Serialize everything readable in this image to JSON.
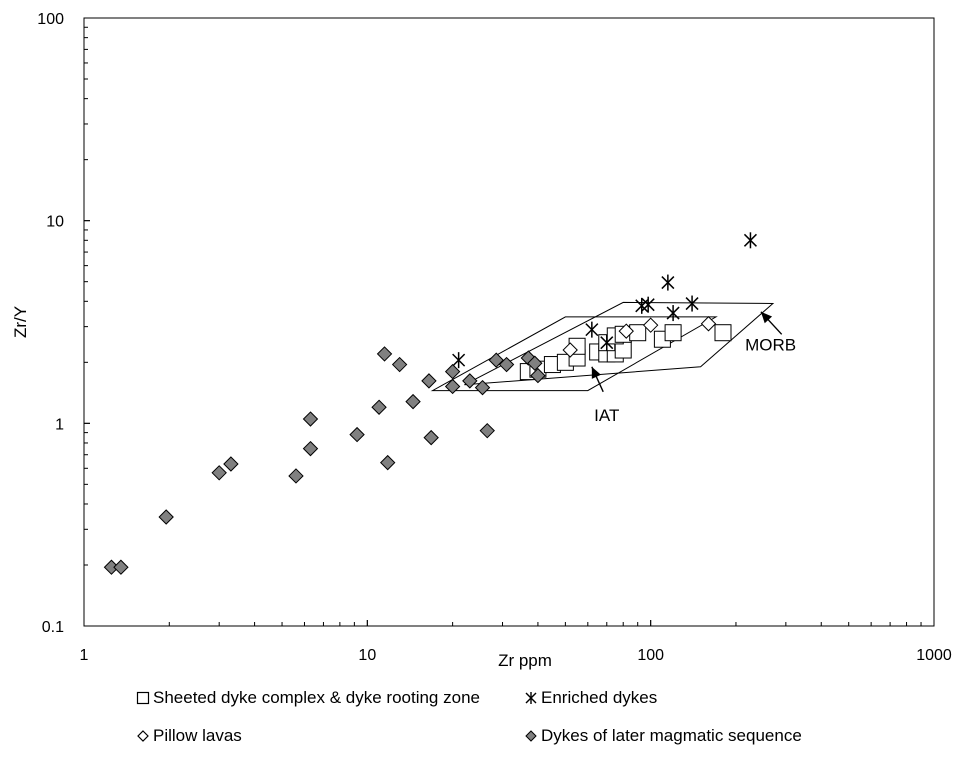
{
  "chart_data": {
    "type": "scatter",
    "title": "",
    "xlabel": "Zr ppm",
    "ylabel": "Zr/Y",
    "xscale": "log",
    "yscale": "log",
    "xlim": [
      1,
      1000
    ],
    "ylim": [
      0.1,
      100
    ],
    "x_ticks": [
      1,
      10,
      100,
      1000
    ],
    "x_tick_labels": [
      "1",
      "10",
      "100",
      "1000"
    ],
    "y_ticks": [
      0.1,
      1,
      10,
      100
    ],
    "y_tick_labels": [
      "0.1",
      "1",
      "10",
      "100"
    ],
    "grid": false,
    "legend_position": "bottom",
    "fields": [
      {
        "name": "IAT",
        "label_at": [
          70,
          1.1
        ],
        "arrow_from": [
          68,
          1.43
        ],
        "arrow_to": [
          62,
          1.9
        ],
        "polygon": [
          [
            17,
            1.45
          ],
          [
            60,
            1.45
          ],
          [
            170,
            3.35
          ],
          [
            50,
            3.35
          ]
        ]
      },
      {
        "name": "MORB",
        "label_at": [
          265,
          2.45
        ],
        "arrow_from": [
          290,
          2.75
        ],
        "arrow_to": [
          245,
          3.55
        ],
        "polygon": [
          [
            22,
            1.55
          ],
          [
            150,
            1.9
          ],
          [
            270,
            3.9
          ],
          [
            80,
            3.95
          ]
        ]
      }
    ],
    "series": [
      {
        "name": "Sheeted dyke complex & dyke rooting zone",
        "marker": "square",
        "color": "#ffffff",
        "points": [
          [
            37,
            1.8
          ],
          [
            40,
            1.85
          ],
          [
            45,
            1.95
          ],
          [
            50,
            2.0
          ],
          [
            55,
            2.1
          ],
          [
            55,
            2.4
          ],
          [
            65,
            2.25
          ],
          [
            70,
            2.2
          ],
          [
            75,
            2.2
          ],
          [
            80,
            2.3
          ],
          [
            70,
            2.5
          ],
          [
            75,
            2.7
          ],
          [
            80,
            2.75
          ],
          [
            90,
            2.8
          ],
          [
            110,
            2.6
          ],
          [
            120,
            2.8
          ],
          [
            180,
            2.8
          ]
        ]
      },
      {
        "name": "Enriched dykes",
        "marker": "asterisk",
        "color": "#000000",
        "points": [
          [
            21,
            2.05
          ],
          [
            62,
            2.9
          ],
          [
            70,
            2.5
          ],
          [
            93,
            3.8
          ],
          [
            98,
            3.85
          ],
          [
            115,
            4.95
          ],
          [
            120,
            3.5
          ],
          [
            140,
            3.9
          ],
          [
            225,
            8.0
          ]
        ]
      },
      {
        "name": "Pillow lavas",
        "marker": "diamond",
        "color": "#ffffff",
        "points": [
          [
            52,
            2.3
          ],
          [
            82,
            2.85
          ],
          [
            100,
            3.05
          ],
          [
            160,
            3.1
          ]
        ]
      },
      {
        "name": "Dykes of later magmatic sequence",
        "marker": "diamond",
        "color": "#808080",
        "points": [
          [
            1.25,
            0.195
          ],
          [
            1.35,
            0.195
          ],
          [
            1.95,
            0.345
          ],
          [
            3.0,
            0.57
          ],
          [
            3.3,
            0.63
          ],
          [
            5.6,
            0.55
          ],
          [
            6.3,
            0.75
          ],
          [
            6.3,
            1.05
          ],
          [
            9.2,
            0.88
          ],
          [
            11.0,
            1.2
          ],
          [
            11.5,
            2.2
          ],
          [
            11.8,
            0.64
          ],
          [
            13.0,
            1.95
          ],
          [
            14.5,
            1.28
          ],
          [
            16.5,
            1.62
          ],
          [
            16.8,
            0.85
          ],
          [
            20.0,
            1.52
          ],
          [
            20.0,
            1.8
          ],
          [
            23.0,
            1.62
          ],
          [
            25.5,
            1.5
          ],
          [
            26.5,
            0.92
          ],
          [
            28.5,
            2.05
          ],
          [
            31.0,
            1.95
          ],
          [
            37.0,
            2.1
          ],
          [
            39.0,
            1.98
          ],
          [
            40.0,
            1.72
          ]
        ]
      }
    ]
  }
}
